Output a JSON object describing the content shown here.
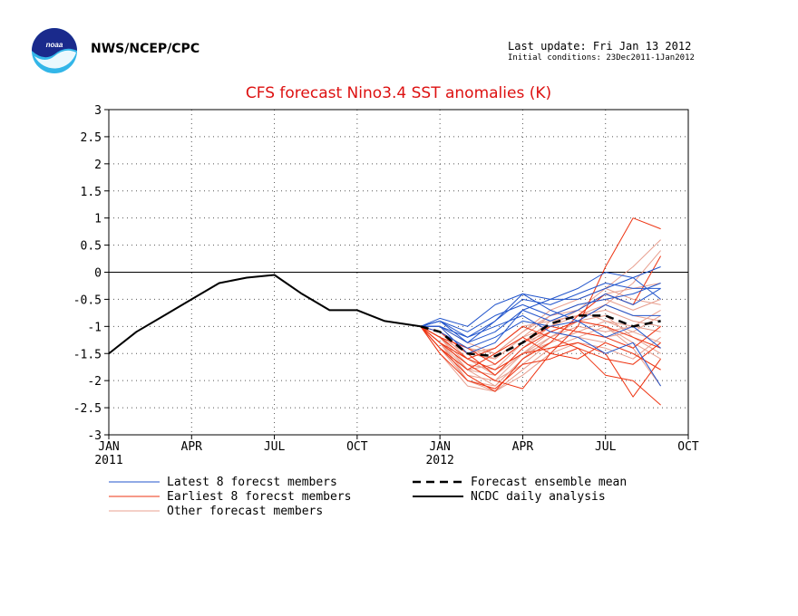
{
  "header": {
    "agency": "NWS/NCEP/CPC",
    "last_update": "Last update: Fri Jan 13 2012",
    "initial_conditions": "Initial conditions: 23Dec2011-1Jan2012",
    "logo_icon": "noaa-logo-icon"
  },
  "colors": {
    "title": "#dd1111",
    "latest": "#2255cc",
    "earliest": "#ee3311",
    "other": "#e8a090",
    "mean": "#000000",
    "analysis": "#000000"
  },
  "chart_data": {
    "type": "line",
    "title": "CFS forecast Nino3.4 SST anomalies (K)",
    "ylim": [
      -3,
      3
    ],
    "yticks": [
      "3",
      "2.5",
      "2",
      "1.5",
      "1",
      "0.5",
      "0",
      "-0.5",
      "-1",
      "-1.5",
      "-2",
      "-2.5",
      "-3"
    ],
    "xlim": [
      0,
      21
    ],
    "xticks": [
      {
        "label": "JAN",
        "sub": "2011",
        "x": 0
      },
      {
        "label": "APR",
        "sub": "",
        "x": 3
      },
      {
        "label": "JUL",
        "sub": "",
        "x": 6
      },
      {
        "label": "OCT",
        "sub": "",
        "x": 9
      },
      {
        "label": "JAN",
        "sub": "2012",
        "x": 12
      },
      {
        "label": "APR",
        "sub": "",
        "x": 15
      },
      {
        "label": "JUL",
        "sub": "",
        "x": 18
      },
      {
        "label": "OCT",
        "sub": "",
        "x": 21
      }
    ],
    "grid": true,
    "legend": [
      {
        "label": "Latest 8 forecst members",
        "style": "latest"
      },
      {
        "label": "Earliest 8 forecst members",
        "style": "earliest"
      },
      {
        "label": "Other forecast members",
        "style": "other"
      },
      {
        "label": "Forecast ensemble mean",
        "style": "mean"
      },
      {
        "label": "NCDC daily analysis",
        "style": "analysis"
      }
    ],
    "forecast_x": [
      11.3,
      12,
      13,
      14,
      15,
      16,
      17,
      18,
      19,
      20
    ],
    "series": [
      {
        "name": "NCDC daily analysis",
        "style": "analysis",
        "x": [
          0,
          1,
          2,
          3,
          4,
          5,
          6,
          7,
          8,
          9,
          10,
          11.3
        ],
        "values": [
          -1.5,
          -1.1,
          -0.8,
          -0.5,
          -0.2,
          -0.1,
          -0.05,
          -0.4,
          -0.7,
          -0.7,
          -0.9,
          -1.0
        ]
      },
      {
        "name": "Forecast ensemble mean",
        "style": "mean",
        "values": [
          -1.0,
          -1.1,
          -1.5,
          -1.55,
          -1.3,
          -0.95,
          -0.8,
          -0.8,
          -1.0,
          -0.9
        ]
      },
      {
        "style": "latest",
        "values": [
          -1.0,
          -0.85,
          -1.0,
          -0.6,
          -0.4,
          -0.5,
          -0.3,
          0.0,
          -0.1,
          0.1
        ]
      },
      {
        "style": "latest",
        "values": [
          -1.0,
          -0.9,
          -1.2,
          -0.9,
          -0.5,
          -0.6,
          -0.4,
          -0.2,
          -0.3,
          -0.3
        ]
      },
      {
        "style": "latest",
        "values": [
          -1.0,
          -1.0,
          -1.3,
          -1.1,
          -0.7,
          -0.5,
          -0.5,
          -0.3,
          -0.1,
          -0.5
        ]
      },
      {
        "style": "latest",
        "values": [
          -1.0,
          -0.9,
          -1.1,
          -0.8,
          -0.6,
          -0.8,
          -0.6,
          -0.5,
          -0.4,
          -0.2
        ]
      },
      {
        "style": "latest",
        "values": [
          -1.0,
          -1.1,
          -1.4,
          -1.2,
          -0.9,
          -1.0,
          -0.9,
          -1.2,
          -1.0,
          -1.4
        ]
      },
      {
        "style": "latest",
        "values": [
          -1.0,
          -1.0,
          -1.2,
          -1.0,
          -0.8,
          -1.1,
          -1.2,
          -1.5,
          -1.3,
          -2.1
        ]
      },
      {
        "style": "latest",
        "values": [
          -1.0,
          -0.9,
          -1.3,
          -0.9,
          -0.4,
          -0.7,
          -0.9,
          -0.6,
          -0.8,
          -0.8
        ]
      },
      {
        "style": "latest",
        "values": [
          -1.0,
          -1.0,
          -1.5,
          -1.3,
          -0.7,
          -0.9,
          -0.7,
          -0.4,
          -0.6,
          -0.3
        ]
      },
      {
        "style": "earliest",
        "values": [
          -1.0,
          -1.3,
          -1.7,
          -2.0,
          -2.15,
          -1.5,
          -1.0,
          0.1,
          1.0,
          0.8
        ]
      },
      {
        "style": "earliest",
        "values": [
          -1.0,
          -1.4,
          -1.9,
          -2.2,
          -1.6,
          -1.3,
          -0.8,
          -0.4,
          -0.6,
          0.3
        ]
      },
      {
        "style": "earliest",
        "values": [
          -1.0,
          -1.2,
          -1.6,
          -1.8,
          -1.5,
          -1.4,
          -1.3,
          -1.5,
          -2.3,
          -1.6
        ]
      },
      {
        "style": "earliest",
        "values": [
          -1.0,
          -1.5,
          -2.0,
          -2.15,
          -1.7,
          -1.6,
          -1.4,
          -1.9,
          -2.0,
          -2.45
        ]
      },
      {
        "style": "earliest",
        "values": [
          -1.0,
          -1.2,
          -1.4,
          -1.7,
          -1.3,
          -1.0,
          -1.1,
          -1.2,
          -1.4,
          -1.0
        ]
      },
      {
        "style": "earliest",
        "values": [
          -1.0,
          -1.4,
          -1.8,
          -1.5,
          -1.2,
          -1.5,
          -1.6,
          -1.3,
          -1.5,
          -1.8
        ]
      },
      {
        "style": "earliest",
        "values": [
          -1.0,
          -1.1,
          -1.5,
          -1.9,
          -1.4,
          -1.1,
          -0.9,
          -1.0,
          -1.2,
          -1.4
        ]
      },
      {
        "style": "earliest",
        "values": [
          -1.0,
          -1.3,
          -1.6,
          -1.4,
          -1.0,
          -1.2,
          -1.4,
          -1.6,
          -1.7,
          -1.3
        ]
      },
      {
        "style": "other",
        "values": [
          -1.0,
          -1.4,
          -2.0,
          -2.2,
          -1.8,
          -1.4,
          -1.2,
          -1.0,
          -1.3,
          -1.6
        ]
      },
      {
        "style": "other",
        "values": [
          -1.0,
          -1.3,
          -1.8,
          -2.1,
          -1.6,
          -1.2,
          -0.9,
          -0.6,
          -0.2,
          0.4
        ]
      },
      {
        "style": "other",
        "values": [
          -1.0,
          -1.2,
          -1.6,
          -1.9,
          -1.4,
          -1.0,
          -0.7,
          -0.3,
          0.1,
          0.6
        ]
      },
      {
        "style": "other",
        "values": [
          -1.0,
          -1.5,
          -2.1,
          -2.2,
          -1.9,
          -1.5,
          -1.3,
          -1.4,
          -1.6,
          -1.2
        ]
      },
      {
        "style": "other",
        "values": [
          -1.0,
          -1.1,
          -1.4,
          -1.6,
          -1.2,
          -0.8,
          -0.6,
          -0.5,
          -0.7,
          -0.5
        ]
      },
      {
        "style": "other",
        "values": [
          -1.0,
          -1.2,
          -1.7,
          -1.8,
          -1.5,
          -1.2,
          -1.0,
          -1.1,
          -1.0,
          -0.7
        ]
      },
      {
        "style": "other",
        "values": [
          -1.0,
          -1.3,
          -1.9,
          -2.0,
          -1.7,
          -1.3,
          -1.1,
          -0.9,
          -1.1,
          -1.3
        ]
      },
      {
        "style": "other",
        "values": [
          -1.0,
          -1.0,
          -1.3,
          -1.5,
          -1.1,
          -0.7,
          -0.5,
          -0.3,
          -0.5,
          -0.6
        ]
      },
      {
        "style": "other",
        "values": [
          -1.0,
          -1.4,
          -1.8,
          -1.7,
          -1.3,
          -1.1,
          -1.2,
          -1.3,
          -1.5,
          -1.8
        ]
      },
      {
        "style": "other",
        "values": [
          -1.0,
          -1.2,
          -1.5,
          -1.4,
          -1.0,
          -0.9,
          -0.8,
          -0.7,
          -0.9,
          -1.0
        ]
      },
      {
        "style": "other",
        "values": [
          -1.0,
          -1.3,
          -2.0,
          -2.1,
          -1.6,
          -1.2,
          -0.9,
          -0.8,
          -1.2,
          -1.5
        ]
      },
      {
        "style": "other",
        "values": [
          -1.0,
          -1.1,
          -1.6,
          -1.8,
          -1.3,
          -0.9,
          -0.8,
          -0.6,
          -0.8,
          -0.9
        ]
      },
      {
        "style": "other",
        "values": [
          -1.0,
          -1.2,
          -1.8,
          -1.9,
          -1.5,
          -1.1,
          -0.9,
          -1.0,
          -1.4,
          -2.1
        ]
      },
      {
        "style": "other",
        "values": [
          -1.0,
          -1.0,
          -1.5,
          -1.6,
          -1.2,
          -1.0,
          -0.8,
          -0.4,
          -0.3,
          -0.2
        ]
      },
      {
        "style": "other",
        "values": [
          -1.0,
          -1.3,
          -1.7,
          -2.0,
          -1.5,
          -1.3,
          -1.1,
          -1.2,
          -1.1,
          -0.8
        ]
      },
      {
        "style": "other",
        "values": [
          -1.0,
          -1.1,
          -1.4,
          -1.5,
          -1.1,
          -0.8,
          -0.7,
          -0.9,
          -1.0,
          -1.1
        ]
      }
    ]
  }
}
